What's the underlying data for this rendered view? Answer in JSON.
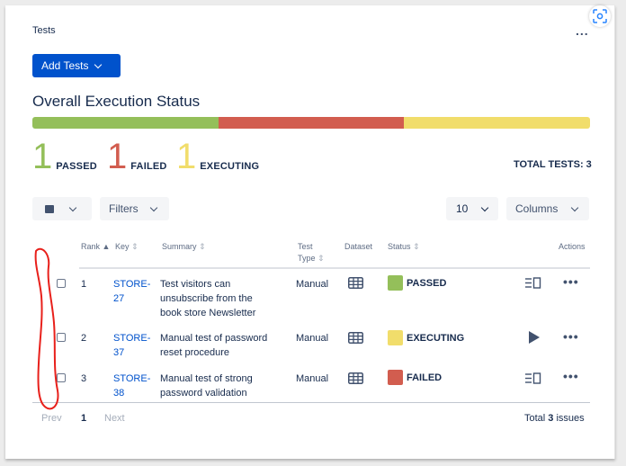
{
  "panel": {
    "title": "Tests",
    "more_label": "...",
    "add_button_label": "Add Tests"
  },
  "overview": {
    "title": "Overall Execution Status",
    "segments": [
      {
        "status": "PASSED",
        "fraction": 0.3333,
        "color": "#94bf5a"
      },
      {
        "status": "FAILED",
        "fraction": 0.3333,
        "color": "#d25d4f"
      },
      {
        "status": "EXECUTING",
        "fraction": 0.3334,
        "color": "#f1dd6b"
      }
    ],
    "stats": [
      {
        "count": "1",
        "label": "PASSED",
        "color": "#94bf5a"
      },
      {
        "count": "1",
        "label": "FAILED",
        "color": "#d25d4f"
      },
      {
        "count": "1",
        "label": "EXECUTING",
        "color": "#f1dd6b"
      }
    ],
    "total_label": "TOTAL TESTS: 3"
  },
  "toolbar": {
    "filters_label": "Filters",
    "page_size": "10",
    "columns_label": "Columns"
  },
  "table": {
    "headers": {
      "rank": "Rank",
      "key": "Key",
      "summary": "Summary",
      "test_type_1": "Test",
      "test_type_2": "Type",
      "dataset": "Dataset",
      "status": "Status",
      "actions": "Actions"
    },
    "rows": [
      {
        "rank": "1",
        "key_1": "STORE-",
        "key_2": "27",
        "summary_1": "Test visitors can",
        "summary_2": "unsubscribe from the",
        "summary_3": "book store Newsletter",
        "type": "Manual",
        "status": "PASSED",
        "status_color": "#94bf5a",
        "action_icon": "details-icon"
      },
      {
        "rank": "2",
        "key_1": "STORE-",
        "key_2": "37",
        "summary_1": "Manual test of password",
        "summary_2": "reset procedure",
        "type": "Manual",
        "status": "EXECUTING",
        "status_color": "#f1dd6b",
        "action_icon": "play-icon"
      },
      {
        "rank": "3",
        "key_1": "STORE-",
        "key_2": "38",
        "summary_1": "Manual test of strong",
        "summary_2": "password validation",
        "type": "Manual",
        "status": "FAILED",
        "status_color": "#d25d4f",
        "action_icon": "details-icon"
      }
    ]
  },
  "pagination": {
    "prev_label": "Prev",
    "current_page": "1",
    "next_label": "Next",
    "total_prefix": "Total ",
    "total_count": "3",
    "total_suffix": " issues"
  },
  "annotation_color": "#e8201b"
}
